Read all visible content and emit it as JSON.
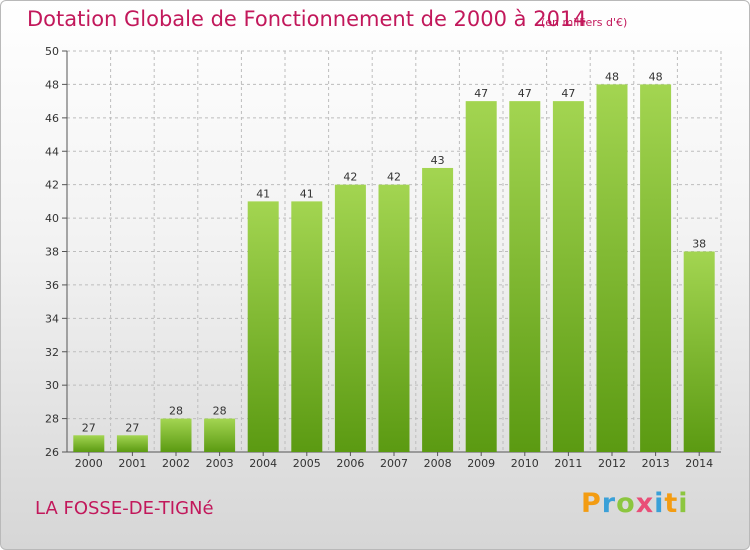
{
  "page": {
    "title": "Dotation Globale de Fonctionnement de 2000 à 2014",
    "subtitle": "(en milliers d'€)",
    "town": "LA FOSSE-DE-TIGNé",
    "logo": {
      "letters": [
        "P",
        "r",
        "o",
        "x",
        "i",
        "t",
        "i"
      ],
      "colors": [
        "#f39c12",
        "#3aa0d8",
        "#8cc63f",
        "#e94e77",
        "#3aa0d8",
        "#f39c12",
        "#8cc63f"
      ]
    }
  },
  "colors": {
    "title": "#c2185b",
    "bar_top": "#a3d551",
    "bar_bottom": "#5b9a12",
    "grid": "#bdbdbd"
  },
  "chart_data": {
    "type": "bar",
    "title": "Dotation Globale de Fonctionnement de 2000 à 2014",
    "subtitle": "(en milliers d'€)",
    "xlabel": "",
    "ylabel": "",
    "categories": [
      "2000",
      "2001",
      "2002",
      "2003",
      "2004",
      "2005",
      "2006",
      "2007",
      "2008",
      "2009",
      "2010",
      "2011",
      "2012",
      "2013",
      "2014"
    ],
    "values": [
      27,
      27,
      28,
      28,
      41,
      41,
      42,
      42,
      43,
      47,
      47,
      47,
      48,
      48,
      38
    ],
    "ylim": [
      26,
      50
    ],
    "yticks": [
      26,
      28,
      30,
      32,
      34,
      36,
      38,
      40,
      42,
      44,
      46,
      48,
      50
    ],
    "grid": "horizontal dashed",
    "data_labels": true,
    "legend": "none"
  }
}
